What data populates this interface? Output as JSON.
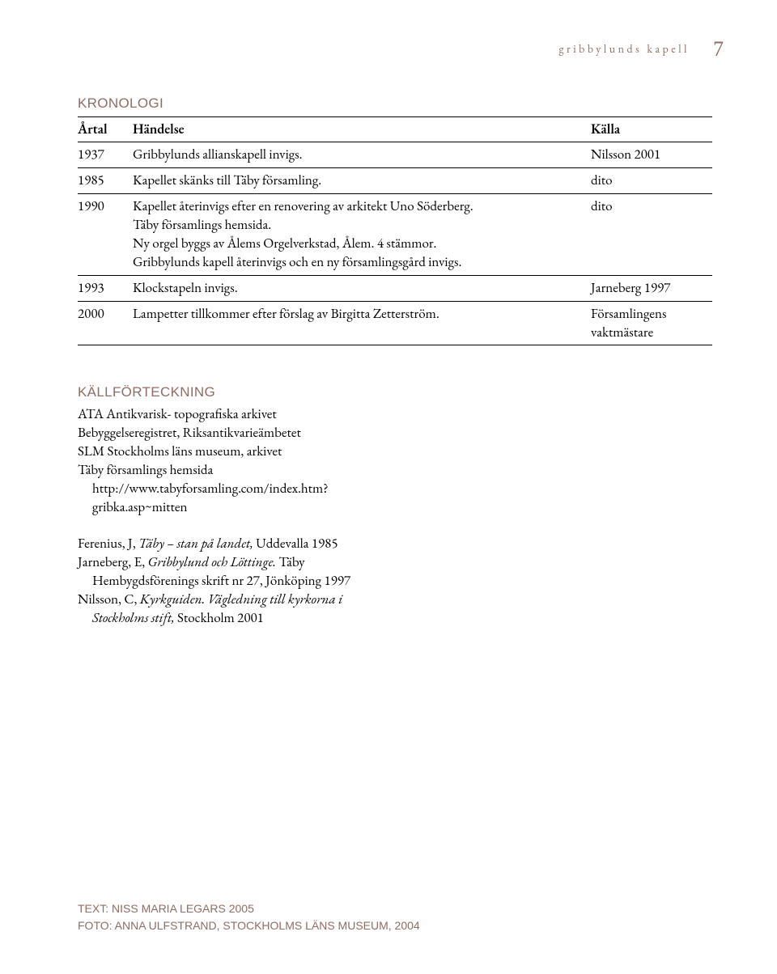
{
  "colors": {
    "accent": "#8e6d64",
    "text": "#000000",
    "background": "#ffffff",
    "rule": "#000000"
  },
  "typography": {
    "body_family": "Adobe Garamond Pro / Garamond",
    "body_size_pt": 12,
    "heading_family": "Optima / Gill Sans",
    "heading_size_pt": 12,
    "running_head_tracking_em": 0.25
  },
  "running_head": {
    "text": "gribbylunds kapell",
    "page_number": "7"
  },
  "chronology": {
    "title": "KRONOLOGI",
    "headers": {
      "year": "Årtal",
      "event": "Händelse",
      "source": "Källa"
    },
    "rows": [
      {
        "year": "1937",
        "event": "Gribbylunds allianskapell invigs.",
        "source": "Nilsson 2001"
      },
      {
        "year": "1985",
        "event": "Kapellet skänks till Täby församling.",
        "source": "dito"
      },
      {
        "year": "1990",
        "event": "Kapellet återinvigs efter en renovering av arkitekt Uno Söderberg.\nTäby församlings hemsida.\nNy orgel byggs av Ålems Orgelverkstad, Ålem. 4 stämmor.\nGribbylunds kapell återinvigs och en ny församlingsgård invigs.",
        "source": "dito"
      },
      {
        "year": "1993",
        "event": "Klockstapeln invigs.",
        "source": "Jarneberg 1997"
      },
      {
        "year": "2000",
        "event": "Lampetter tillkommer efter förslag av Birgitta Zetterström.",
        "source": "Församlingens vaktmästare"
      }
    ]
  },
  "sources": {
    "title": "KÄLLFÖRTECKNING",
    "archives": [
      "ATA Antikvarisk- topografiska arkivet",
      "Bebyggelseregistret, Riksantikvarieämbetet",
      "SLM Stockholms läns museum, arkivet",
      "Täby församlings hemsida http://www.tabyforsamling.com/index.htm?gribka.asp~mitten"
    ],
    "bibliography": [
      {
        "pre": "Ferenius, J, ",
        "it": "Täby – stan på landet,",
        "post": " Uddevalla 1985"
      },
      {
        "pre": "Jarneberg, E, ",
        "it": "Gribbylund och Löttinge.",
        "post": " Täby Hembygdsförenings skrift nr 27, Jönköping 1997"
      },
      {
        "pre": "Nilsson, C, ",
        "it": "Kyrkguiden. Vägledning till kyrkorna i Stockholms stift,",
        "post": " Stockholm 2001"
      }
    ]
  },
  "footer": {
    "line1": "TEXT: NISS MARIA LEGARS 2005",
    "line2": "FOTO: ANNA ULFSTRAND, STOCKHOLMS LÄNS MUSEUM, 2004"
  }
}
